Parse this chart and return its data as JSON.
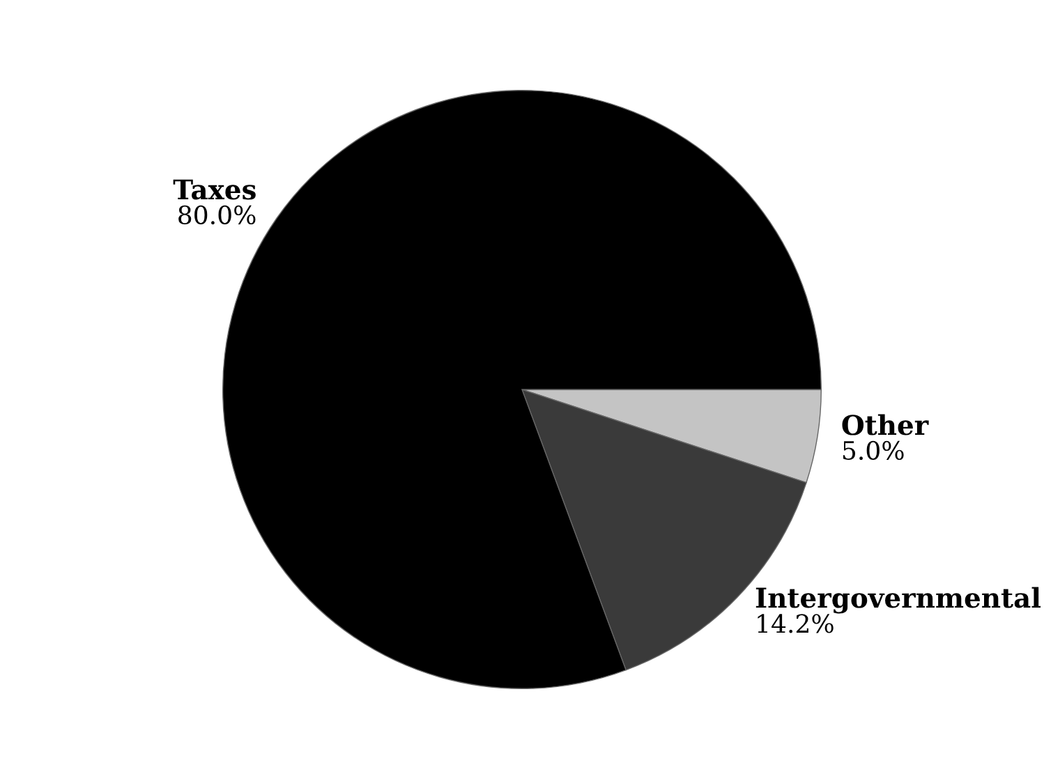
{
  "chart_data": {
    "type": "pie",
    "categories": [
      "Other",
      "Intergovernmental",
      "Taxes"
    ],
    "values": [
      5.0,
      14.2,
      80.0
    ],
    "value_labels": [
      "5.0%",
      "14.2%",
      "80.0%"
    ],
    "colors": [
      "#c4c4c4",
      "#3a3a3a",
      "#000000"
    ],
    "legend": false
  }
}
